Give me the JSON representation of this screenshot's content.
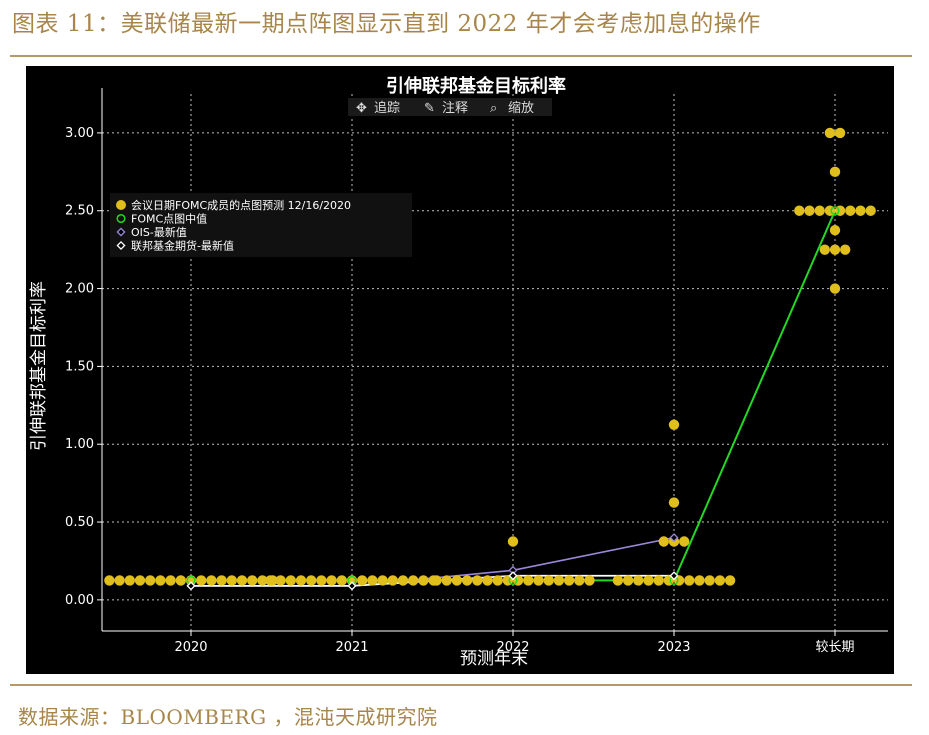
{
  "figure_title": "图表 11：美联储最新一期点阵图显示直到 2022 年才会考虑加息的操作",
  "source_note": "数据来源：BLOOMBERG ，混沌天成研究院",
  "toolbar": {
    "track_label": "追踪",
    "annotate_label": "注释",
    "zoom_label": "缩放"
  },
  "colors": {
    "dots": "#e0bf1d",
    "median": "#22d822",
    "ois": "#9b87d9",
    "futures": "#ffffff",
    "background": "#000000",
    "accent": "#a8864a"
  },
  "chart_data": {
    "type": "scatter",
    "title": "引伸联邦基金目标利率",
    "xlabel": "预测年末",
    "ylabel": "引伸联邦基金目标利率",
    "categories": [
      "2020",
      "2021",
      "2022",
      "2023",
      "较长期"
    ],
    "ylim": [
      -0.2,
      3.25
    ],
    "yticks": [
      "0.00",
      "0.50",
      "1.00",
      "1.50",
      "2.00",
      "2.50",
      "3.00"
    ],
    "grid": true,
    "legend_position": "upper-left",
    "legend": [
      "会议日期FOMC成员的点图预测 12/16/2020",
      "FOMC点图中值",
      "OIS-最新值",
      "联邦基金期货-最新值"
    ],
    "dot_plot": [
      {
        "category": "2020",
        "rates": [
          {
            "rate": 0.125,
            "count": 17
          }
        ]
      },
      {
        "category": "2021",
        "rates": [
          {
            "rate": 0.125,
            "count": 17
          }
        ]
      },
      {
        "category": "2022",
        "rates": [
          {
            "rate": 0.375,
            "count": 1
          },
          {
            "rate": 0.125,
            "count": 16
          }
        ]
      },
      {
        "category": "2023",
        "rates": [
          {
            "rate": 1.125,
            "count": 1
          },
          {
            "rate": 0.625,
            "count": 1
          },
          {
            "rate": 0.375,
            "count": 3
          },
          {
            "rate": 0.125,
            "count": 12
          }
        ]
      },
      {
        "category": "较长期",
        "rates": [
          {
            "rate": 3.0,
            "count": 2
          },
          {
            "rate": 2.75,
            "count": 1
          },
          {
            "rate": 2.5,
            "count": 8
          },
          {
            "rate": 2.375,
            "count": 1
          },
          {
            "rate": 2.25,
            "count": 3
          },
          {
            "rate": 2.0,
            "count": 1
          }
        ]
      }
    ],
    "series": [
      {
        "name": "FOMC点图中值",
        "values": [
          0.125,
          0.125,
          0.125,
          0.125,
          2.5
        ]
      },
      {
        "name": "OIS-最新值",
        "values": [
          0.09,
          0.09,
          0.19,
          0.4,
          null
        ]
      },
      {
        "name": "联邦基金期货-最新值",
        "values": [
          0.09,
          0.09,
          0.155,
          0.155,
          null
        ]
      }
    ]
  }
}
